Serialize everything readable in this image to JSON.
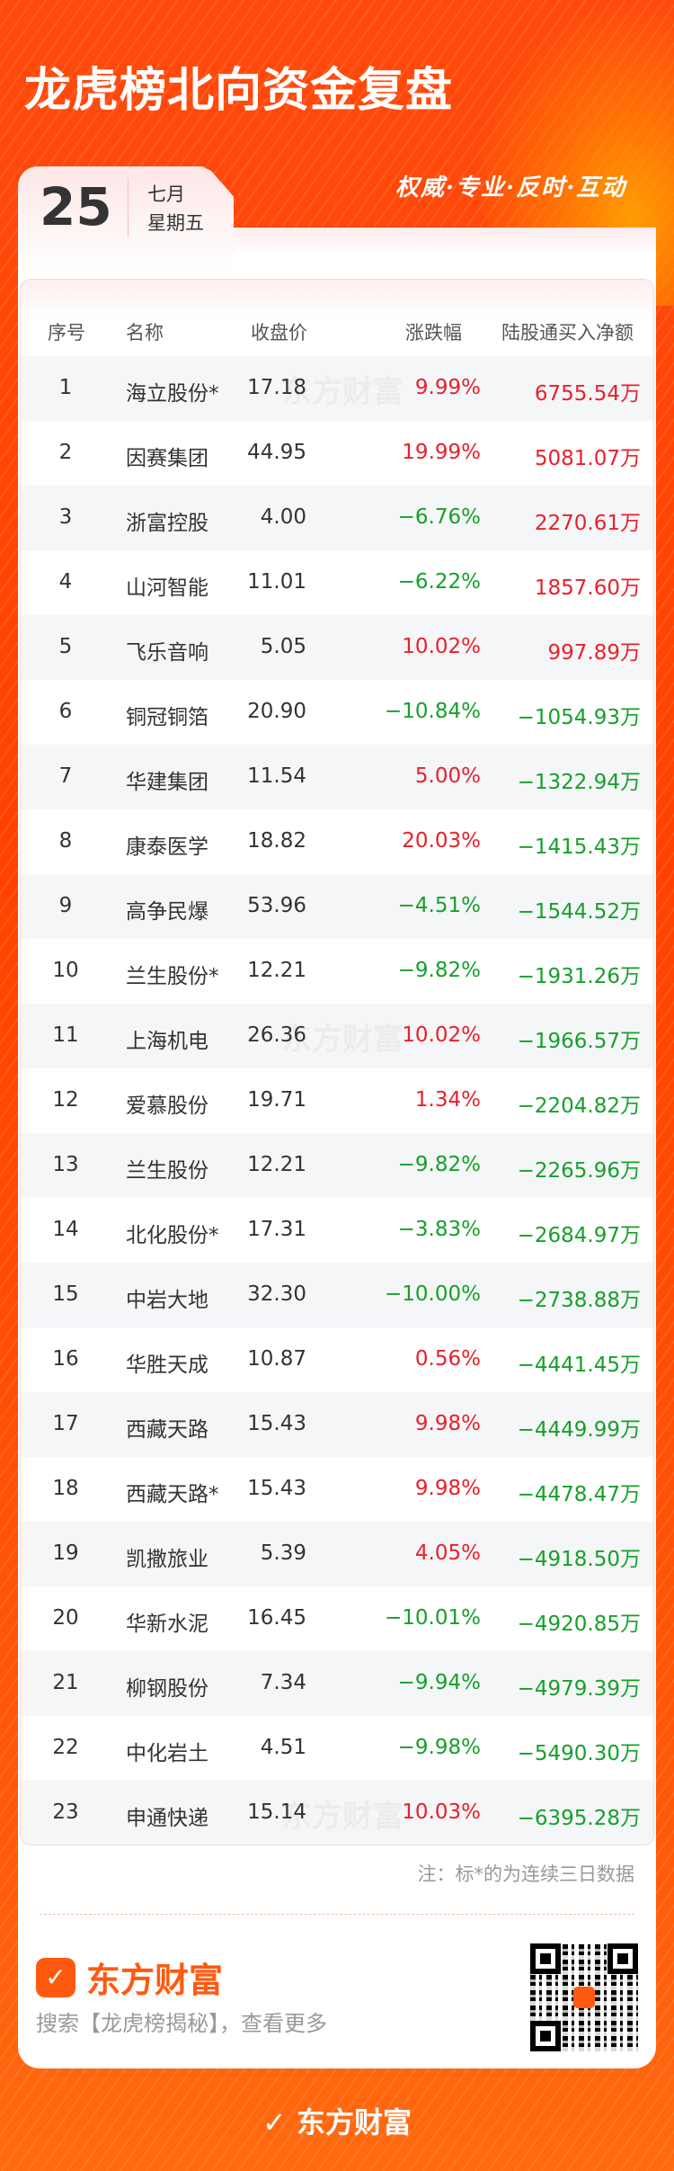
{
  "header": {
    "title": "龙虎榜北向资金复盘",
    "slogan": "权威·专业·反时·互动"
  },
  "date": {
    "day": "25",
    "month": "七月",
    "weekday": "星期五"
  },
  "colors": {
    "up": "#e8202a",
    "down": "#15a02a",
    "brand": "#ff5a10"
  },
  "table": {
    "columns": [
      "序号",
      "名称",
      "收盘价",
      "涨跌幅",
      "陆股通买入净额"
    ],
    "watermark": "东方财富",
    "rows": [
      {
        "no": "1",
        "name": "海立股份*",
        "price": "17.18",
        "change": "9.99%",
        "flow": "6755.54万"
      },
      {
        "no": "2",
        "name": "因赛集团",
        "price": "44.95",
        "change": "19.99%",
        "flow": "5081.07万"
      },
      {
        "no": "3",
        "name": "浙富控股",
        "price": "4.00",
        "change": "−6.76%",
        "flow": "2270.61万"
      },
      {
        "no": "4",
        "name": "山河智能",
        "price": "11.01",
        "change": "−6.22%",
        "flow": "1857.60万"
      },
      {
        "no": "5",
        "name": "飞乐音响",
        "price": "5.05",
        "change": "10.02%",
        "flow": "997.89万"
      },
      {
        "no": "6",
        "name": "铜冠铜箔",
        "price": "20.90",
        "change": "−10.84%",
        "flow": "−1054.93万"
      },
      {
        "no": "7",
        "name": "华建集团",
        "price": "11.54",
        "change": "5.00%",
        "flow": "−1322.94万"
      },
      {
        "no": "8",
        "name": "康泰医学",
        "price": "18.82",
        "change": "20.03%",
        "flow": "−1415.43万"
      },
      {
        "no": "9",
        "name": "高争民爆",
        "price": "53.96",
        "change": "−4.51%",
        "flow": "−1544.52万"
      },
      {
        "no": "10",
        "name": "兰生股份*",
        "price": "12.21",
        "change": "−9.82%",
        "flow": "−1931.26万"
      },
      {
        "no": "11",
        "name": "上海机电",
        "price": "26.36",
        "change": "10.02%",
        "flow": "−1966.57万"
      },
      {
        "no": "12",
        "name": "爱慕股份",
        "price": "19.71",
        "change": "1.34%",
        "flow": "−2204.82万"
      },
      {
        "no": "13",
        "name": "兰生股份",
        "price": "12.21",
        "change": "−9.82%",
        "flow": "−2265.96万"
      },
      {
        "no": "14",
        "name": "北化股份*",
        "price": "17.31",
        "change": "−3.83%",
        "flow": "−2684.97万"
      },
      {
        "no": "15",
        "name": "中岩大地",
        "price": "32.30",
        "change": "−10.00%",
        "flow": "−2738.88万"
      },
      {
        "no": "16",
        "name": "华胜天成",
        "price": "10.87",
        "change": "0.56%",
        "flow": "−4441.45万"
      },
      {
        "no": "17",
        "name": "西藏天路",
        "price": "15.43",
        "change": "9.98%",
        "flow": "−4449.99万"
      },
      {
        "no": "18",
        "name": "西藏天路*",
        "price": "15.43",
        "change": "9.98%",
        "flow": "−4478.47万"
      },
      {
        "no": "19",
        "name": "凯撒旅业",
        "price": "5.39",
        "change": "4.05%",
        "flow": "−4918.50万"
      },
      {
        "no": "20",
        "name": "华新水泥",
        "price": "16.45",
        "change": "−10.01%",
        "flow": "−4920.85万"
      },
      {
        "no": "21",
        "name": "柳钢股份",
        "price": "7.34",
        "change": "−9.94%",
        "flow": "−4979.39万"
      },
      {
        "no": "22",
        "name": "中化岩土",
        "price": "4.51",
        "change": "−9.98%",
        "flow": "−5490.30万"
      },
      {
        "no": "23",
        "name": "申通快递",
        "price": "15.14",
        "change": "10.03%",
        "flow": "−6395.28万"
      }
    ]
  },
  "note": "注：标*的为连续三日数据",
  "footer": {
    "brand": "东方财富",
    "search_text": "搜索【龙虎榜揭秘】，查看更多",
    "bottom_brand": "东方财富"
  }
}
